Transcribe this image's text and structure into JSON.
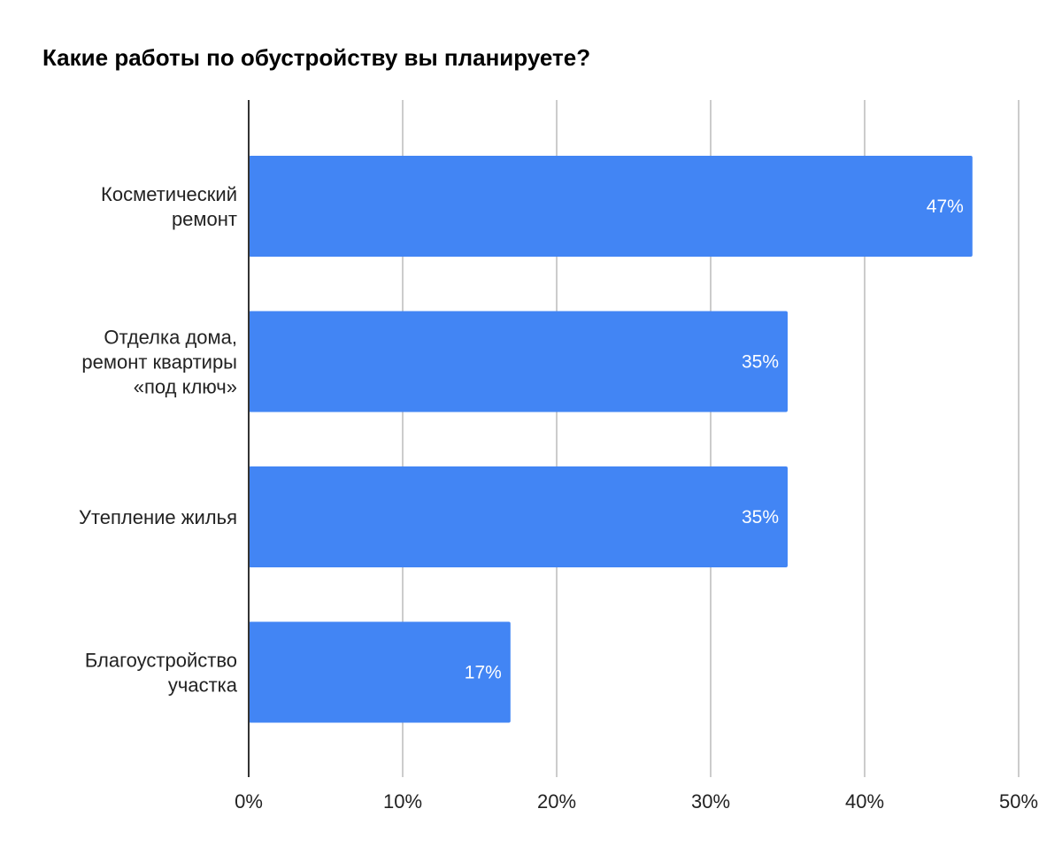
{
  "chart_data": {
    "type": "bar",
    "orientation": "horizontal",
    "title": "Какие работы по обустройству вы планируете?",
    "categories": [
      [
        "Косметический",
        "ремонт"
      ],
      [
        "Отделка дома,",
        "ремонт квартиры",
        "«под ключ»"
      ],
      [
        "Утепление жилья"
      ],
      [
        "Благоустройство",
        "участка"
      ]
    ],
    "values": [
      47,
      35,
      35,
      17
    ],
    "data_labels": [
      "47%",
      "35%",
      "35%",
      "17%"
    ],
    "xlim": [
      0,
      50
    ],
    "ticks": [
      0,
      10,
      20,
      30,
      40,
      50
    ],
    "tick_labels": [
      "0%",
      "10%",
      "20%",
      "30%",
      "40%",
      "50%"
    ],
    "grid": true,
    "legend": "none",
    "colors": {
      "bar": "#4285f4",
      "grid": "#cccccc",
      "axis": "#333333"
    }
  }
}
